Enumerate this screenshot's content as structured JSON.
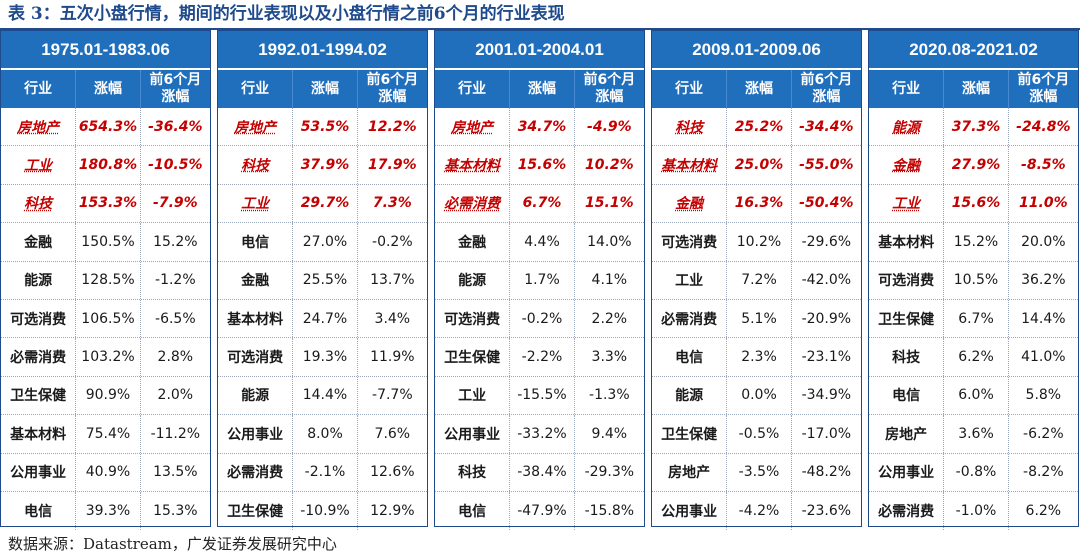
{
  "caption": "表 3：五次小盘行情，期间的行业表现以及小盘行情之前6个月的行业表现",
  "source": "数据来源：Datastream，广发证券发展研究中心",
  "colors": {
    "header_bg": "#1f6fbd",
    "highlight_text": "#c40000",
    "title_text": "#1f4a8c"
  },
  "columns": {
    "industry": "行业",
    "change": "涨幅",
    "prior": "前6个月涨幅"
  },
  "panels": [
    {
      "period": "1975.01-1983.06",
      "rows": [
        {
          "industry": "房地产",
          "change": "654.3%",
          "prior": "-36.4%",
          "highlight": true
        },
        {
          "industry": "工业",
          "change": "180.8%",
          "prior": "-10.5%",
          "highlight": true
        },
        {
          "industry": "科技",
          "change": "153.3%",
          "prior": "-7.9%",
          "highlight": true
        },
        {
          "industry": "金融",
          "change": "150.5%",
          "prior": "15.2%",
          "highlight": false
        },
        {
          "industry": "能源",
          "change": "128.5%",
          "prior": "-1.2%",
          "highlight": false
        },
        {
          "industry": "可选消费",
          "change": "106.5%",
          "prior": "-6.5%",
          "highlight": false
        },
        {
          "industry": "必需消费",
          "change": "103.2%",
          "prior": "2.8%",
          "highlight": false
        },
        {
          "industry": "卫生保健",
          "change": "90.9%",
          "prior": "2.0%",
          "highlight": false
        },
        {
          "industry": "基本材料",
          "change": "75.4%",
          "prior": "-11.2%",
          "highlight": false
        },
        {
          "industry": "公用事业",
          "change": "40.9%",
          "prior": "13.5%",
          "highlight": false
        },
        {
          "industry": "电信",
          "change": "39.3%",
          "prior": "15.3%",
          "highlight": false
        }
      ]
    },
    {
      "period": "1992.01-1994.02",
      "rows": [
        {
          "industry": "房地产",
          "change": "53.5%",
          "prior": "12.2%",
          "highlight": true
        },
        {
          "industry": "科技",
          "change": "37.9%",
          "prior": "17.9%",
          "highlight": true
        },
        {
          "industry": "工业",
          "change": "29.7%",
          "prior": "7.3%",
          "highlight": true
        },
        {
          "industry": "电信",
          "change": "27.0%",
          "prior": "-0.2%",
          "highlight": false
        },
        {
          "industry": "金融",
          "change": "25.5%",
          "prior": "13.7%",
          "highlight": false
        },
        {
          "industry": "基本材料",
          "change": "24.7%",
          "prior": "3.4%",
          "highlight": false
        },
        {
          "industry": "可选消费",
          "change": "19.3%",
          "prior": "11.9%",
          "highlight": false
        },
        {
          "industry": "能源",
          "change": "14.4%",
          "prior": "-7.7%",
          "highlight": false
        },
        {
          "industry": "公用事业",
          "change": "8.0%",
          "prior": "7.6%",
          "highlight": false
        },
        {
          "industry": "必需消费",
          "change": "-2.1%",
          "prior": "12.6%",
          "highlight": false
        },
        {
          "industry": "卫生保健",
          "change": "-10.9%",
          "prior": "12.9%",
          "highlight": false
        }
      ]
    },
    {
      "period": "2001.01-2004.01",
      "rows": [
        {
          "industry": "房地产",
          "change": "34.7%",
          "prior": "-4.9%",
          "highlight": true
        },
        {
          "industry": "基本材料",
          "change": "15.6%",
          "prior": "10.2%",
          "highlight": true
        },
        {
          "industry": "必需消费",
          "change": "6.7%",
          "prior": "15.1%",
          "highlight": true
        },
        {
          "industry": "金融",
          "change": "4.4%",
          "prior": "14.0%",
          "highlight": false
        },
        {
          "industry": "能源",
          "change": "1.7%",
          "prior": "4.1%",
          "highlight": false
        },
        {
          "industry": "可选消费",
          "change": "-0.2%",
          "prior": "2.2%",
          "highlight": false
        },
        {
          "industry": "卫生保健",
          "change": "-2.2%",
          "prior": "3.3%",
          "highlight": false
        },
        {
          "industry": "工业",
          "change": "-15.5%",
          "prior": "-1.3%",
          "highlight": false
        },
        {
          "industry": "公用事业",
          "change": "-33.2%",
          "prior": "9.4%",
          "highlight": false
        },
        {
          "industry": "科技",
          "change": "-38.4%",
          "prior": "-29.3%",
          "highlight": false
        },
        {
          "industry": "电信",
          "change": "-47.9%",
          "prior": "-15.8%",
          "highlight": false
        }
      ]
    },
    {
      "period": "2009.01-2009.06",
      "rows": [
        {
          "industry": "科技",
          "change": "25.2%",
          "prior": "-34.4%",
          "highlight": true
        },
        {
          "industry": "基本材料",
          "change": "25.0%",
          "prior": "-55.0%",
          "highlight": true
        },
        {
          "industry": "金融",
          "change": "16.3%",
          "prior": "-50.4%",
          "highlight": true
        },
        {
          "industry": "可选消费",
          "change": "10.2%",
          "prior": "-29.6%",
          "highlight": false
        },
        {
          "industry": "工业",
          "change": "7.2%",
          "prior": "-42.0%",
          "highlight": false
        },
        {
          "industry": "必需消费",
          "change": "5.1%",
          "prior": "-20.9%",
          "highlight": false
        },
        {
          "industry": "电信",
          "change": "2.3%",
          "prior": "-23.1%",
          "highlight": false
        },
        {
          "industry": "能源",
          "change": "0.0%",
          "prior": "-34.9%",
          "highlight": false
        },
        {
          "industry": "卫生保健",
          "change": "-0.5%",
          "prior": "-17.0%",
          "highlight": false
        },
        {
          "industry": "房地产",
          "change": "-3.5%",
          "prior": "-48.2%",
          "highlight": false
        },
        {
          "industry": "公用事业",
          "change": "-4.2%",
          "prior": "-23.6%",
          "highlight": false
        }
      ]
    },
    {
      "period": "2020.08-2021.02",
      "rows": [
        {
          "industry": "能源",
          "change": "37.3%",
          "prior": "-24.8%",
          "highlight": true
        },
        {
          "industry": "金融",
          "change": "27.9%",
          "prior": "-8.5%",
          "highlight": true
        },
        {
          "industry": "工业",
          "change": "15.6%",
          "prior": "11.0%",
          "highlight": true
        },
        {
          "industry": "基本材料",
          "change": "15.2%",
          "prior": "20.0%",
          "highlight": false
        },
        {
          "industry": "可选消费",
          "change": "10.5%",
          "prior": "36.2%",
          "highlight": false
        },
        {
          "industry": "卫生保健",
          "change": "6.7%",
          "prior": "14.4%",
          "highlight": false
        },
        {
          "industry": "科技",
          "change": "6.2%",
          "prior": "41.0%",
          "highlight": false
        },
        {
          "industry": "电信",
          "change": "6.0%",
          "prior": "5.8%",
          "highlight": false
        },
        {
          "industry": "房地产",
          "change": "3.6%",
          "prior": "-6.2%",
          "highlight": false
        },
        {
          "industry": "公用事业",
          "change": "-0.8%",
          "prior": "-8.2%",
          "highlight": false
        },
        {
          "industry": "必需消费",
          "change": "-1.0%",
          "prior": "6.2%",
          "highlight": false
        }
      ]
    }
  ]
}
